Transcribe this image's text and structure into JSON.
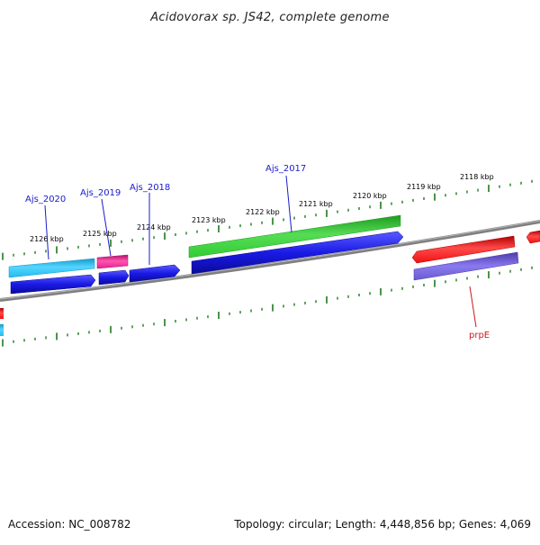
{
  "title": "Acidovorax sp. JS42, complete genome",
  "footer": {
    "accession": "Accession: NC_008782",
    "summary": "Topology: circular; Length: 4,448,856 bp; Genes: 4,069"
  },
  "colors": {
    "background": "#ffffff",
    "backbone": "#7f7f7f",
    "tick": "#1f7a1f",
    "label_blue": "#1a1acc",
    "label_red": "#cc1a1a",
    "cds_blue": "#1a1ae6",
    "gene_green": "#33cc33",
    "gene_cyan": "#22bbee",
    "gene_pink": "#e6208f",
    "gene_red": "#ee1111",
    "cds_purple": "#6a5acd"
  },
  "ticks": [
    "2126 kbp",
    "2125 kbp",
    "2124 kbp",
    "2123 kbp",
    "2122 kbp",
    "2121 kbp",
    "2120 kbp",
    "2119 kbp",
    "2118 kbp"
  ],
  "gene_labels": [
    {
      "text": "Ajs_2020",
      "color": "label_blue"
    },
    {
      "text": "Ajs_2019",
      "color": "label_blue"
    },
    {
      "text": "Ajs_2018",
      "color": "label_blue"
    },
    {
      "text": "Ajs_2017",
      "color": "label_blue"
    },
    {
      "text": "prpE",
      "color": "label_red"
    }
  ]
}
